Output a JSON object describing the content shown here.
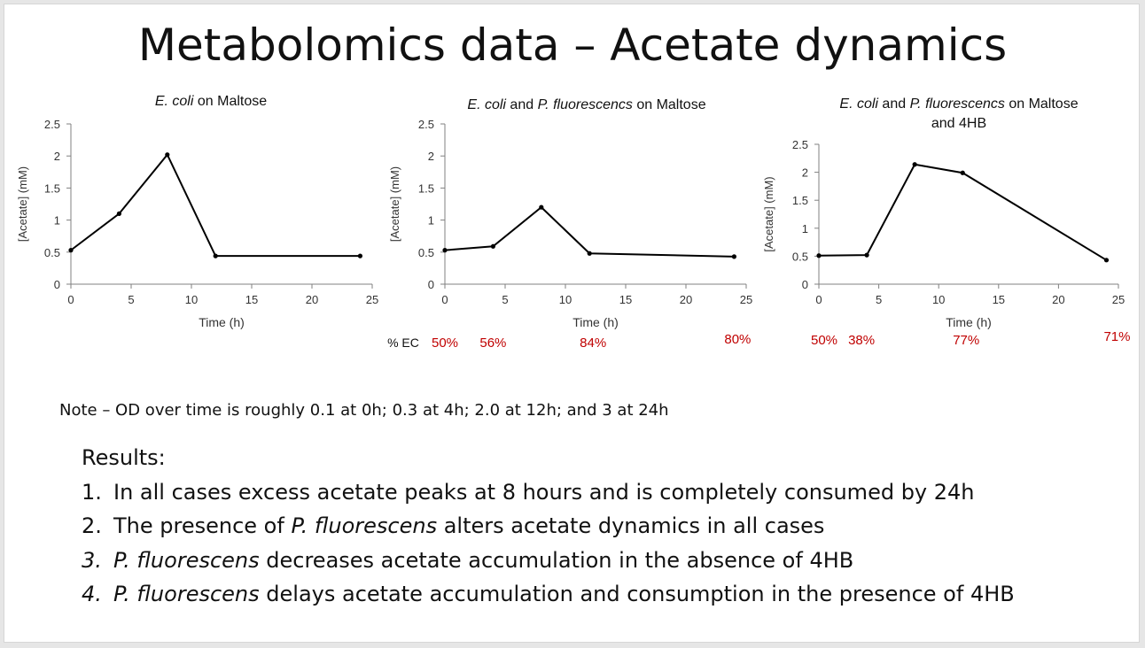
{
  "slide": {
    "title": "Metabolomics data – Acetate dynamics"
  },
  "chart_data": [
    {
      "type": "line",
      "title": [
        {
          "text": "E. coli",
          "italic": true
        },
        {
          "text": " on Maltose",
          "italic": false
        }
      ],
      "title_line2": "",
      "xlabel": "Time (h)",
      "ylabel": "[Acetate] (mM)",
      "xlim": [
        0,
        25
      ],
      "ylim": [
        0,
        2.5
      ],
      "xticks": [
        0,
        5,
        10,
        15,
        20,
        25
      ],
      "xtick_labels": [
        "0",
        "5",
        "10",
        "15",
        "20",
        "25"
      ],
      "yticks": [
        0,
        0.5,
        1,
        1.5,
        2,
        2.5
      ],
      "ytick_labels": [
        "0",
        "0.5",
        "1",
        "1.5",
        "2",
        "2.5"
      ],
      "grid": false,
      "x": [
        0,
        4,
        8,
        12,
        24
      ],
      "y": [
        0.53,
        1.1,
        2.02,
        0.44,
        0.44
      ],
      "annotations": {
        "label": "",
        "values": []
      }
    },
    {
      "type": "line",
      "title": [
        {
          "text": "E. coli",
          "italic": true
        },
        {
          "text": " and ",
          "italic": false
        },
        {
          "text": "P. fluorescencs",
          "italic": true
        },
        {
          "text": " on Maltose",
          "italic": false
        }
      ],
      "title_line2": "",
      "xlabel": "Time (h)",
      "ylabel": "[Acetate] (mM)",
      "xlim": [
        0,
        25
      ],
      "ylim": [
        0,
        2.5
      ],
      "xticks": [
        0,
        5,
        10,
        15,
        20,
        25
      ],
      "xtick_labels": [
        "0",
        "5",
        "10",
        "15",
        "20",
        "25"
      ],
      "yticks": [
        0,
        0.5,
        1,
        1.5,
        2,
        2.5
      ],
      "ytick_labels": [
        "0",
        "0.5",
        "1",
        "1.5",
        "2",
        "2.5"
      ],
      "grid": false,
      "x": [
        0,
        4,
        8,
        12,
        24
      ],
      "y": [
        0.53,
        0.59,
        1.2,
        0.48,
        0.43
      ],
      "annotations": {
        "label": "% EC",
        "values": [
          {
            "x": 0,
            "text": "50%"
          },
          {
            "x": 4,
            "text": "56%"
          },
          {
            "x": 12,
            "text": "84%"
          },
          {
            "x": 24,
            "text": "80%"
          }
        ]
      }
    },
    {
      "type": "line",
      "title": [
        {
          "text": "E. coli",
          "italic": true
        },
        {
          "text": " and ",
          "italic": false
        },
        {
          "text": "P. fluorescencs",
          "italic": true
        },
        {
          "text": " on Maltose",
          "italic": false
        }
      ],
      "title_line2": "and 4HB",
      "xlabel": "Time (h)",
      "ylabel": "[Acetate] (mM)",
      "xlim": [
        0,
        25
      ],
      "ylim": [
        0,
        2.5
      ],
      "xticks": [
        0,
        5,
        10,
        15,
        20,
        25
      ],
      "xtick_labels": [
        "0",
        "5",
        "10",
        "15",
        "20",
        "25"
      ],
      "yticks": [
        0,
        0.5,
        1,
        1.5,
        2,
        2.5
      ],
      "ytick_labels": [
        "0",
        "0.5",
        "1",
        "1.5",
        "2",
        "2.5"
      ],
      "grid": false,
      "x": [
        0,
        4,
        8,
        12,
        24
      ],
      "y": [
        0.51,
        0.52,
        2.14,
        1.99,
        0.43
      ],
      "annotations": {
        "label": "",
        "values": [
          {
            "x": 0,
            "text": "50%"
          },
          {
            "x": 4,
            "text": "38%"
          },
          {
            "x": 12,
            "text": "77%"
          },
          {
            "x": 24,
            "text": "71%"
          }
        ]
      }
    }
  ],
  "note": "Note – OD over time is roughly 0.1 at 0h; 0.3 at 4h; 2.0 at 12h; and 3 at 24h",
  "results": {
    "heading": "Results:",
    "items": [
      {
        "num": "1.",
        "italic_num": false,
        "parts": [
          {
            "text": "In all cases excess acetate peaks at 8 hours and is completely consumed by 24h",
            "italic": false
          }
        ]
      },
      {
        "num": "2.",
        "italic_num": false,
        "parts": [
          {
            "text": "The presence of ",
            "italic": false
          },
          {
            "text": "P. fluorescens",
            "italic": true
          },
          {
            "text": " alters acetate dynamics in all cases",
            "italic": false
          }
        ]
      },
      {
        "num": "3.",
        "italic_num": true,
        "parts": [
          {
            "text": "P. fluorescens",
            "italic": true
          },
          {
            "text": " decreases acetate accumulation in the absence of 4HB",
            "italic": false
          }
        ]
      },
      {
        "num": "4.",
        "italic_num": true,
        "parts": [
          {
            "text": "P. fluorescens",
            "italic": true
          },
          {
            "text": " delays acetate accumulation and consumption in the presence of 4HB",
            "italic": false
          }
        ]
      }
    ]
  },
  "colors": {
    "line": "#000000",
    "annotation": "#c00000",
    "axis": "#808080"
  }
}
